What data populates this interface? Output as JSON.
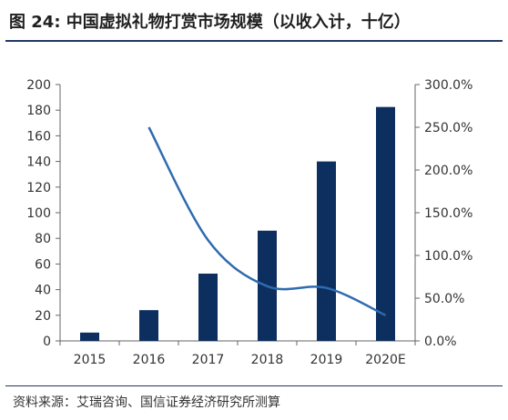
{
  "figure_title": "图 24:  中国虚拟礼物打赏市场规模（以收入计，十亿）",
  "source_note": "资料来源：艾瑞咨询、国信证券经济研究所测算",
  "colors": {
    "bar": "#0d2f5f",
    "line": "#2e6bb0",
    "axis": "#666666",
    "text": "#333333"
  },
  "chart_data": {
    "type": "bar",
    "title": "",
    "categories": [
      "2015",
      "2016",
      "2017",
      "2018",
      "2019",
      "2020E"
    ],
    "series": [
      {
        "type": "bar",
        "axis": "left",
        "values": [
          6.5,
          24,
          52.5,
          86,
          140,
          182.5
        ]
      },
      {
        "type": "line",
        "axis": "right",
        "unit": "%",
        "values": [
          null,
          250,
          118,
          64,
          62,
          30
        ]
      }
    ],
    "y_left": {
      "lim": [
        0,
        200
      ],
      "ticks": [
        "0",
        "20",
        "40",
        "60",
        "80",
        "100",
        "120",
        "140",
        "160",
        "180",
        "200"
      ]
    },
    "y_right": {
      "lim": [
        0,
        300
      ],
      "ticks": [
        "0.0%",
        "50.0%",
        "100.0%",
        "150.0%",
        "200.0%",
        "250.0%",
        "300.0%"
      ]
    },
    "grid": false,
    "legend": "none"
  }
}
